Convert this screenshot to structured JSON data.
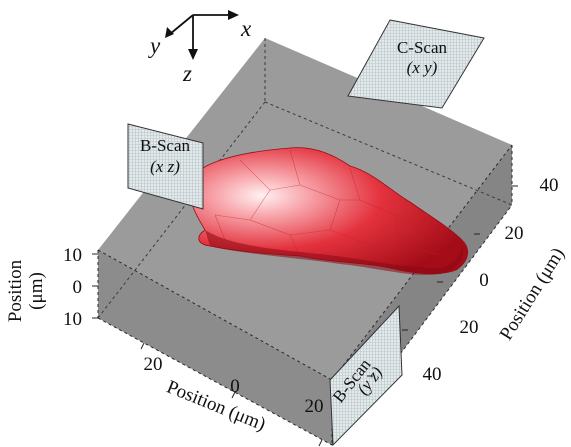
{
  "coordinate_axes": {
    "x": "x",
    "y": "y",
    "z": "z"
  },
  "scan_planes": {
    "c_scan": {
      "title": "C-Scan",
      "coords": "(x y)"
    },
    "b_scan_xz": {
      "title": "B-Scan",
      "coords": "(x z)"
    },
    "b_scan_yz": {
      "title": "B-Scan",
      "coords": "(y z)"
    }
  },
  "left_axis": {
    "title_line1": "Position",
    "title_line2": "(μm)",
    "ticks": [
      "10",
      "0",
      "10"
    ]
  },
  "bottom_axis": {
    "title": "Position (μm)",
    "ticks": [
      "20",
      "0",
      "20"
    ]
  },
  "right_axis": {
    "title": "Position (μm)",
    "ticks": [
      "40",
      "20",
      "0",
      "20",
      "40"
    ]
  },
  "colors": {
    "box_top": "#9b9b9b",
    "box_side": "#8c8c8c",
    "cell_body": "#e8343f",
    "cell_highlight": "#ffe9ea",
    "scan_plane": "#e6ecee"
  }
}
